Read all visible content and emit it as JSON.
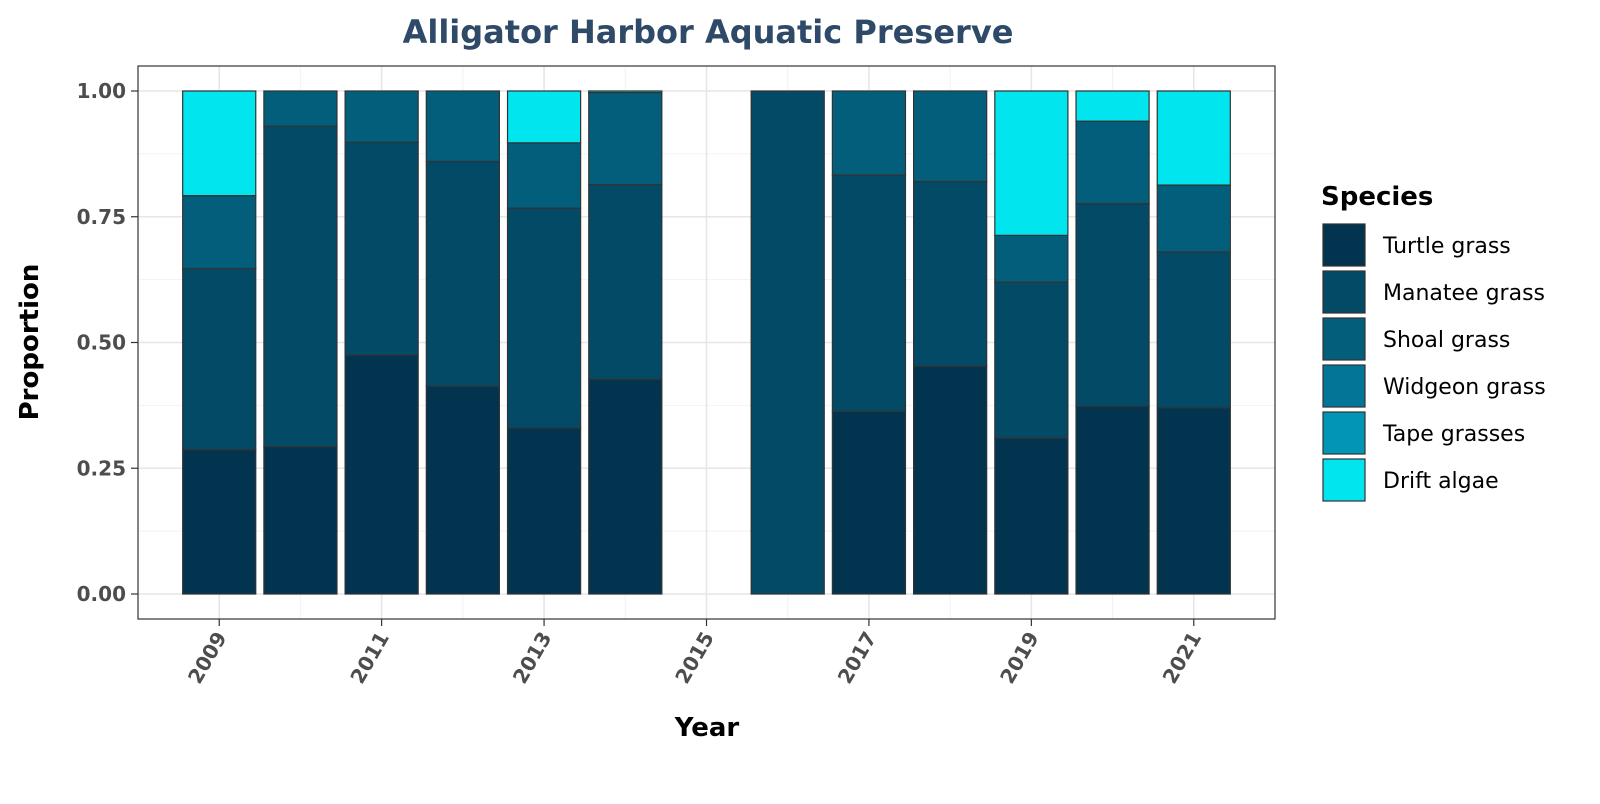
{
  "chart_data": {
    "type": "bar",
    "stacked": true,
    "title": "Alligator Harbor Aquatic Preserve",
    "xlabel": "Year",
    "ylabel": "Proportion",
    "ylim": [
      0,
      1
    ],
    "xlim": [
      2008,
      2022
    ],
    "y_ticks": [
      "0.00",
      "0.25",
      "0.50",
      "0.75",
      "1.00"
    ],
    "x_ticks": [
      "2009",
      "2011",
      "2013",
      "2015",
      "2017",
      "2019",
      "2021"
    ],
    "grid": true,
    "legend": {
      "title": "Species",
      "position": "right"
    },
    "categories": [
      2009,
      2010,
      2011,
      2012,
      2013,
      2014,
      2016,
      2017,
      2018,
      2019,
      2020,
      2021
    ],
    "series": [
      {
        "name": "Turtle grass",
        "color": "#02344f",
        "values": [
          0.287,
          0.293,
          0.475,
          0.413,
          0.33,
          0.427,
          0.0,
          0.363,
          0.453,
          0.31,
          0.373,
          0.37
        ]
      },
      {
        "name": "Manatee grass",
        "color": "#034a66",
        "values": [
          0.36,
          0.637,
          0.423,
          0.447,
          0.437,
          0.387,
          1.0,
          0.47,
          0.367,
          0.31,
          0.403,
          0.31
        ]
      },
      {
        "name": "Shoal grass",
        "color": "#035e7c",
        "values": [
          0.145,
          0.07,
          0.102,
          0.14,
          0.13,
          0.183,
          0.0,
          0.167,
          0.18,
          0.093,
          0.164,
          0.133
        ]
      },
      {
        "name": "Widgeon grass",
        "color": "#037597",
        "values": [
          0,
          0,
          0,
          0,
          0,
          0,
          0,
          0,
          0,
          0,
          0,
          0
        ]
      },
      {
        "name": "Tape grasses",
        "color": "#0295b5",
        "values": [
          0,
          0,
          0,
          0,
          0,
          0,
          0,
          0,
          0,
          0,
          0,
          0
        ]
      },
      {
        "name": "Drift algae",
        "color": "#00e5ee",
        "values": [
          0.208,
          0.0,
          0.0,
          0.0,
          0.103,
          0.003,
          0.0,
          0.0,
          0.0,
          0.287,
          0.06,
          0.187
        ]
      }
    ]
  }
}
